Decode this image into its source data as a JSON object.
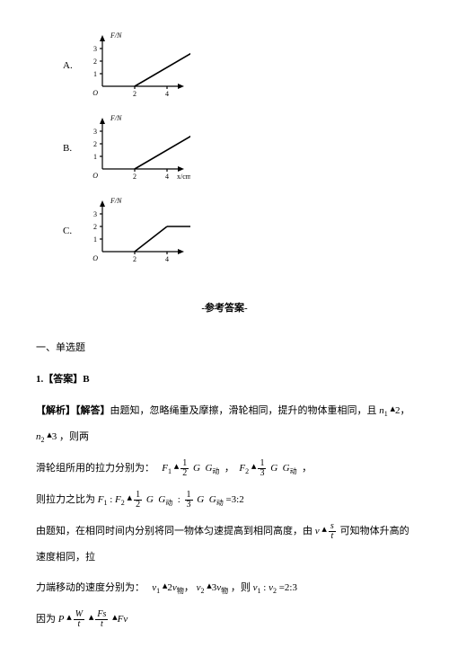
{
  "options": [
    {
      "label": "A.",
      "xEndLabel": "6",
      "extraX": null,
      "hasExtra": false,
      "flat": false
    },
    {
      "label": "B.",
      "xEndLabel": "6",
      "extraX": "7",
      "hasExtra": true,
      "flat": false
    },
    {
      "label": "C.",
      "xEndLabel": "6",
      "extraX": null,
      "hasExtra": false,
      "flat": true
    }
  ],
  "chart": {
    "yAxisLabel": "F/N",
    "xAxisLabel": "x/cm",
    "yTicks": [
      "1",
      "2",
      "3"
    ],
    "xTicks": [
      "2",
      "4"
    ],
    "origin": "O",
    "width": 120,
    "height": 78,
    "originX": 22,
    "originY": 62,
    "yTop": 8,
    "xRight": 110,
    "x2u": 18,
    "y1u": 14,
    "axisColor": "#000",
    "lineColor": "#000",
    "fontSize": 8
  },
  "answersHeader": "-参考答案-",
  "section1": "一、单选题",
  "q1Ans": "1.【答案】B",
  "explLabel": "【解析】【解答】",
  "expl1a": "由题知，忽略绳重及摩擦，滑轮相同，提升的物体重相同，且 ",
  "expl1b": " ，则两",
  "expl2": "滑轮组所用的拉力分别为：",
  "expl3": "则拉力之比为 ",
  "expl3end": " =3:2",
  "expl4a": "由题知，在相同时间内分别将同一物体匀速提高到相同高度，由 ",
  "expl4b": " 可知物体升高的速度相同，拉",
  "expl5a": "力端移动的速度分别为：",
  "expl5b": " ，则 ",
  "expl6": "因为 "
}
